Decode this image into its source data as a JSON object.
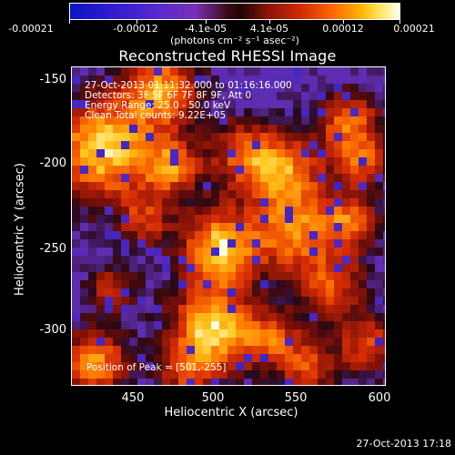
{
  "colorbar": {
    "ticks": [
      "-0.00021",
      "-0.00012",
      "-4.1e-05",
      "4.1e-05",
      "0.00012",
      "0.00021"
    ],
    "units": "(photons cm⁻² s⁻¹ asec⁻²)"
  },
  "title": "Reconstructed RHESSI Image",
  "info": {
    "line1": "27-Oct-2013 01:11:32.000 to 01:16:16.000",
    "line2": "Detectors: 3F 5F 6F 7F 8F 9F, Att 0",
    "line3": "Energy Range: 25.0 - 50.0 keV",
    "line4": "Clean    Total counts: 9.22E+05",
    "peak": "Position of Peak = [501,-255]"
  },
  "axes": {
    "xlabel": "Heliocentric X (arcsec)",
    "ylabel": "Heliocentric Y (arcsec)",
    "xticks": [
      "450",
      "500",
      "550",
      "600"
    ],
    "yticks": [
      "-150",
      "-200",
      "-250",
      "-300"
    ]
  },
  "timestamp": "27-Oct-2013 17:18"
}
